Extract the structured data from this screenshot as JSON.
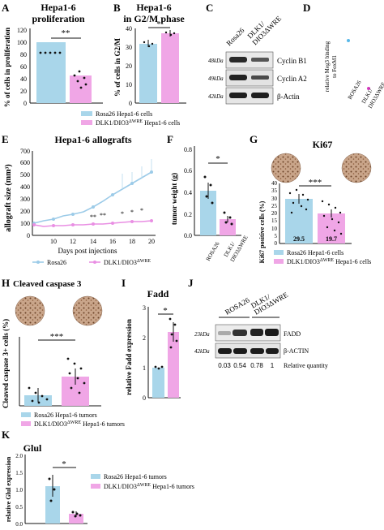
{
  "panels": {
    "A": {
      "letter": "A",
      "title_l1": "Hepa1-6",
      "title_l2": "proliferation",
      "ylabel": "% of cells in proliferation",
      "ticks": [
        "0",
        "20",
        "40",
        "60",
        "80",
        "100",
        "120"
      ],
      "sig": "**"
    },
    "B": {
      "letter": "B",
      "title_l1": "Hepa1-6",
      "title_l2": "in G2/M phase",
      "ylabel": "% of cells in G2/M",
      "ticks": [
        "0",
        "10",
        "20",
        "30",
        "40"
      ],
      "sig": "*"
    },
    "AB_legend": {
      "rosa": "Rosa26 Hepa1-6 cells",
      "dlk": "DLK1/DIO3",
      "dlk_sup": "ΔWRE",
      "dlk_tail": " Hepa1-6 cells"
    },
    "C": {
      "letter": "C",
      "lane1": "Rosa26",
      "lane2a": "DLK1/",
      "lane2b": "DIO3ΔWRE",
      "rows": [
        {
          "kda": "48kDa",
          "label": "Cyclin B1"
        },
        {
          "kda": "49kDa",
          "label": "Cyclin A2"
        },
        {
          "kda": "42kDa",
          "label": "β-Actin"
        }
      ]
    },
    "D": {
      "letter": "D",
      "ylabel_l1": "relative Meg3 binding",
      "ylabel_l2": "to FoxM1",
      "x1": "ROSA26",
      "x2a": "DLK1/",
      "x2b": "DIO3ΔWRE"
    },
    "E": {
      "letter": "E",
      "title": "Hepa1-6 allografts",
      "ylabel": "allograft size (mm³)",
      "xlabel": "Days post injections",
      "yticks": [
        "0",
        "100",
        "200",
        "300",
        "400",
        "500",
        "600",
        "700"
      ],
      "xticks": [
        "10",
        "12",
        "14",
        "16",
        "18",
        "20"
      ],
      "legend_rosa": "Rosa26",
      "legend_dlk": "DLK1/DIO3",
      "legend_dlk_sup": "ΔWRE",
      "stars": [
        "**",
        "**",
        "*",
        "*",
        "*"
      ]
    },
    "F": {
      "letter": "F",
      "ylabel": "tumor weight (g)",
      "yticks": [
        "0.0",
        "0.2",
        "0.4",
        "0.6",
        "0.8"
      ],
      "sig": "*",
      "x1": "ROSA26",
      "x2a": "DLK1/",
      "x2b": "DIO3ΔWRE"
    },
    "G": {
      "letter": "G",
      "title": "Ki67",
      "ylabel": "Ki67 positive cells (%)",
      "yticks": [
        "0",
        "5",
        "10",
        "15",
        "20",
        "25",
        "30",
        "35",
        "40"
      ],
      "sig": "***",
      "bar1_label": "29.5",
      "bar2_label": "19.7",
      "legend_rosa": "Rosa26 Hepa1-6 cells",
      "legend_dlk": "DLK1/DIO3",
      "legend_dlk_sup": "ΔWRE",
      "legend_dlk_tail": " Hepa1-6 cells"
    },
    "H": {
      "letter": "H",
      "title": "Cleaved caspase 3",
      "ylabel": "Cleaved caspase 3+ cells (%)",
      "sig": "***",
      "legend_rosa": "Rosa26 Hepa1-6 tumors",
      "legend_dlk": "DLK1/DIO3",
      "legend_dlk_sup": "ΔWRE",
      "legend_dlk_tail": " Hepa1-6 tumors"
    },
    "I": {
      "letter": "I",
      "title": "Fadd",
      "ylabel": "relative Fadd expression",
      "yticks": [
        "0",
        "1",
        "2",
        "3"
      ],
      "sig": "*"
    },
    "J": {
      "letter": "J",
      "lane1": "ROSA26",
      "lane2a": "DLK1/",
      "lane2b": "DIO3ΔWRE",
      "rows": [
        {
          "kda": "23kDa",
          "label": "FADD"
        },
        {
          "kda": "42kDa",
          "label": "β-ACTIN"
        }
      ],
      "quant": [
        "0.03",
        "0.54",
        "0.78",
        "1"
      ],
      "quant_label": "Relative quantity"
    },
    "K": {
      "letter": "K",
      "title": "Glul",
      "ylabel": "relative Glul expression",
      "yticks": [
        "0.0",
        "0.5",
        "1.0",
        "1.5",
        "2.0"
      ],
      "sig": "*",
      "legend_rosa": "Rosa26 Hepa1-6 tumors",
      "legend_dlk": "DLK1/DIO3",
      "legend_dlk_sup": "ΔWRE",
      "legend_dlk_tail": " Hepa1-6 tumors"
    }
  },
  "colors": {
    "rosa": "#a9d6ea",
    "dlk": "#f0a6e6",
    "rosa_line": "#9ccbe8",
    "dlk_line": "#e98fe3",
    "blue_dot": "#58b8e8",
    "pink_dot": "#d63bbf"
  },
  "chart_data": [
    {
      "panel": "A",
      "type": "bar",
      "categories": [
        "Rosa26",
        "DLK1/DIO3ΔWRE"
      ],
      "values": [
        100,
        45
      ],
      "ylim": [
        0,
        120
      ]
    },
    {
      "panel": "B",
      "type": "bar",
      "categories": [
        "Rosa26",
        "DLK1/DIO3ΔWRE"
      ],
      "values": [
        32,
        37.5
      ],
      "ylim": [
        0,
        40
      ]
    },
    {
      "panel": "D",
      "type": "scatter",
      "categories": [
        "ROSA26",
        "DLK1/DIO3ΔWRE"
      ],
      "values": [
        11,
        1.3
      ]
    },
    {
      "panel": "E",
      "type": "line",
      "x": [
        7,
        9,
        11,
        12,
        13,
        14,
        15,
        16,
        17,
        18,
        19
      ],
      "series": [
        {
          "name": "Rosa26",
          "values": [
            100,
            120,
            135,
            160,
            175,
            190,
            230,
            280,
            330,
            380,
            430
          ]
        },
        {
          "name": "DLK1/DIO3ΔWRE",
          "values": [
            100,
            90,
            95,
            100,
            110,
            110,
            120,
            130,
            140,
            150,
            155
          ]
        }
      ],
      "ylim": [
        0,
        700
      ]
    },
    {
      "panel": "F",
      "type": "bar",
      "categories": [
        "ROSA26",
        "DLK1/DIO3ΔWRE"
      ],
      "values": [
        0.42,
        0.15
      ],
      "ylim": [
        0,
        0.8
      ]
    },
    {
      "panel": "G",
      "type": "bar",
      "categories": [
        "Rosa26",
        "DLK1/DIO3ΔWRE"
      ],
      "values": [
        29.5,
        19.7
      ],
      "ylim": [
        0,
        40
      ]
    },
    {
      "panel": "H",
      "type": "bar",
      "categories": [
        "Rosa26",
        "DLK1/DIO3ΔWRE"
      ],
      "values": [
        0.3,
        0.9
      ]
    },
    {
      "panel": "I",
      "type": "bar",
      "categories": [
        "Rosa26",
        "DLK1/DIO3ΔWRE"
      ],
      "values": [
        1.0,
        2.2
      ],
      "ylim": [
        0,
        3
      ]
    },
    {
      "panel": "K",
      "type": "bar",
      "categories": [
        "Rosa26",
        "DLK1/DIO3ΔWRE"
      ],
      "values": [
        1.1,
        0.28
      ],
      "ylim": [
        0,
        2
      ]
    }
  ]
}
